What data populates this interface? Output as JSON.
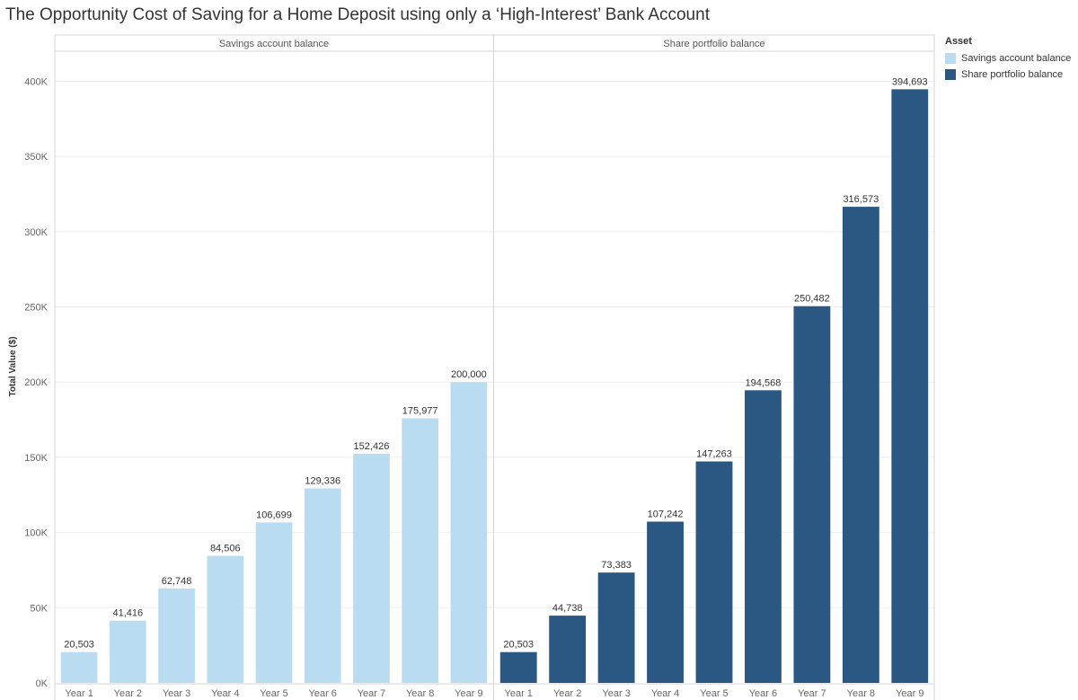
{
  "title": "The Opportunity Cost of Saving for a Home Deposit using only a ‘High-Interest’ Bank Account",
  "legend": {
    "title": "Asset"
  },
  "chart_data": {
    "type": "bar",
    "categories": [
      "Year 1",
      "Year 2",
      "Year 3",
      "Year 4",
      "Year 5",
      "Year 6",
      "Year 7",
      "Year 8",
      "Year 9"
    ],
    "series": [
      {
        "name": "Savings account balance",
        "color": "#b9dcf0",
        "values": [
          20503,
          41416,
          62748,
          84506,
          106699,
          129336,
          152426,
          175977,
          200000
        ],
        "labels": [
          "20,503",
          "41,416",
          "62,748",
          "84,506",
          "106,699",
          "129,336",
          "152,426",
          "175,977",
          "200,000"
        ]
      },
      {
        "name": "Share portfolio balance",
        "color": "#2b5783",
        "values": [
          20503,
          44738,
          73383,
          107242,
          147263,
          194568,
          250482,
          316573,
          394693
        ],
        "labels": [
          "20,503",
          "44,738",
          "73,383",
          "107,242",
          "147,263",
          "194,568",
          "250,482",
          "316,573",
          "394,693"
        ]
      }
    ],
    "ylabel": "Total Value ($)",
    "ylim": [
      0,
      420000
    ],
    "yticks": [
      0,
      50000,
      100000,
      150000,
      200000,
      250000,
      300000,
      350000,
      400000
    ],
    "ytick_labels": [
      "0K",
      "50K",
      "100K",
      "150K",
      "200K",
      "250K",
      "300K",
      "350K",
      "400K"
    ],
    "grid": true,
    "legend_position": "right"
  }
}
